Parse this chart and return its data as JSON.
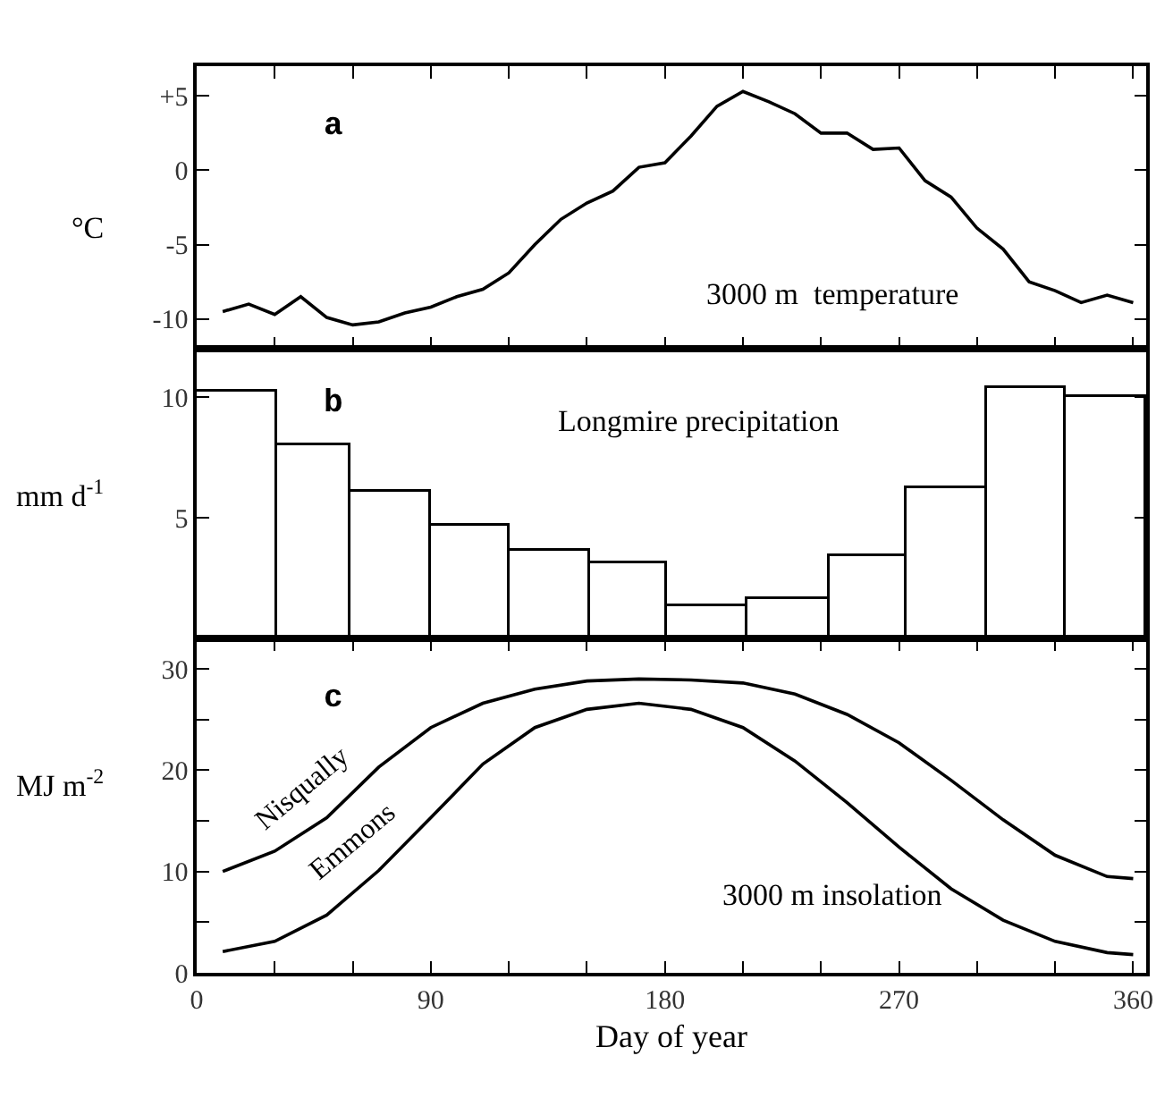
{
  "chart_data": [
    {
      "type": "line",
      "ylabel": "°C",
      "annotations": [
        "a",
        "3000 m  temperature"
      ],
      "color": "#000000",
      "x": [
        10,
        20,
        30,
        40,
        50,
        60,
        70,
        80,
        90,
        100,
        110,
        120,
        130,
        140,
        150,
        160,
        170,
        180,
        190,
        200,
        210,
        220,
        230,
        240,
        250,
        260,
        270,
        280,
        290,
        300,
        310,
        320,
        330,
        340,
        350,
        360
      ],
      "values": [
        -9.5,
        -9.0,
        -9.7,
        -8.5,
        -9.9,
        -10.4,
        -10.2,
        -9.6,
        -9.2,
        -8.5,
        -8.0,
        -6.9,
        -5.0,
        -3.3,
        -2.2,
        -1.4,
        0.2,
        0.5,
        2.3,
        4.3,
        5.3,
        4.6,
        3.8,
        2.5,
        2.5,
        1.4,
        1.5,
        -0.7,
        -1.8,
        -3.9,
        -5.3,
        -7.5,
        -8.1,
        -8.9,
        -8.4,
        -8.9
      ],
      "xlim": [
        0,
        365
      ],
      "xticks": [
        {
          "value": 30,
          "label": null
        },
        {
          "value": 60,
          "label": null
        },
        {
          "value": 90,
          "label": null
        },
        {
          "value": 120,
          "label": null
        },
        {
          "value": 150,
          "label": null
        },
        {
          "value": 180,
          "label": null
        },
        {
          "value": 210,
          "label": null
        },
        {
          "value": 240,
          "label": null
        },
        {
          "value": 270,
          "label": null
        },
        {
          "value": 300,
          "label": null
        },
        {
          "value": 330,
          "label": null
        },
        {
          "value": 360,
          "label": null
        }
      ],
      "ylim": [
        -12,
        7
      ],
      "yticks": [
        {
          "value": 5,
          "label": "+5"
        },
        0,
        -5,
        -10
      ],
      "tick_labels": "y"
    },
    {
      "type": "histogram",
      "ylabel": "mm d$^{-1}$",
      "annotations": [
        "b",
        "Longmire precipitation"
      ],
      "color": "#ffffff",
      "bins": [
        0,
        31,
        59,
        90,
        120,
        151,
        181,
        212,
        243,
        273,
        304,
        334,
        365
      ],
      "values": [
        10.2,
        8.0,
        6.1,
        4.7,
        3.6,
        3.1,
        1.3,
        1.6,
        3.4,
        6.2,
        10.4,
        10.0
      ],
      "xlim": [
        0,
        365
      ],
      "ylim": [
        0,
        12
      ],
      "yticks": [
        5,
        10
      ],
      "tick_labels": "y"
    },
    {
      "type": "line",
      "ylabel": "MJ m$^{-2}$",
      "xlabel": "Day of year",
      "annotations": [
        "c",
        "3000 m insolation"
      ],
      "x": [
        10,
        30,
        50,
        70,
        90,
        110,
        130,
        150,
        170,
        190,
        210,
        230,
        250,
        270,
        290,
        310,
        330,
        350,
        360
      ],
      "series": [
        {
          "name": "Nisqually",
          "color": "#000000",
          "values": [
            10.0,
            12.0,
            15.3,
            20.3,
            24.2,
            26.6,
            28.0,
            28.8,
            29.0,
            28.9,
            28.6,
            27.5,
            25.5,
            22.7,
            19.0,
            15.1,
            11.6,
            9.5,
            9.3
          ]
        },
        {
          "name": "Emmons",
          "color": "#000000",
          "values": [
            2.1,
            3.1,
            5.7,
            10.1,
            15.3,
            20.6,
            24.2,
            26.0,
            26.6,
            26.0,
            24.2,
            20.9,
            16.8,
            12.4,
            8.3,
            5.2,
            3.1,
            2.0,
            1.8
          ]
        }
      ],
      "xlim": [
        0,
        365
      ],
      "xticks": [
        0,
        {
          "value": 30,
          "label": null
        },
        {
          "value": 60,
          "label": null
        },
        90,
        {
          "value": 120,
          "label": null
        },
        {
          "value": 150,
          "label": null
        },
        180,
        {
          "value": 210,
          "label": null
        },
        {
          "value": 240,
          "label": null
        },
        270,
        {
          "value": 300,
          "label": null
        },
        {
          "value": 330,
          "label": null
        },
        360
      ],
      "ylim": [
        0,
        33
      ],
      "yticks": [
        0,
        {
          "value": 5,
          "label": null
        },
        10,
        {
          "value": 15,
          "label": null
        },
        20,
        {
          "value": 25,
          "label": null
        },
        30
      ]
    }
  ]
}
